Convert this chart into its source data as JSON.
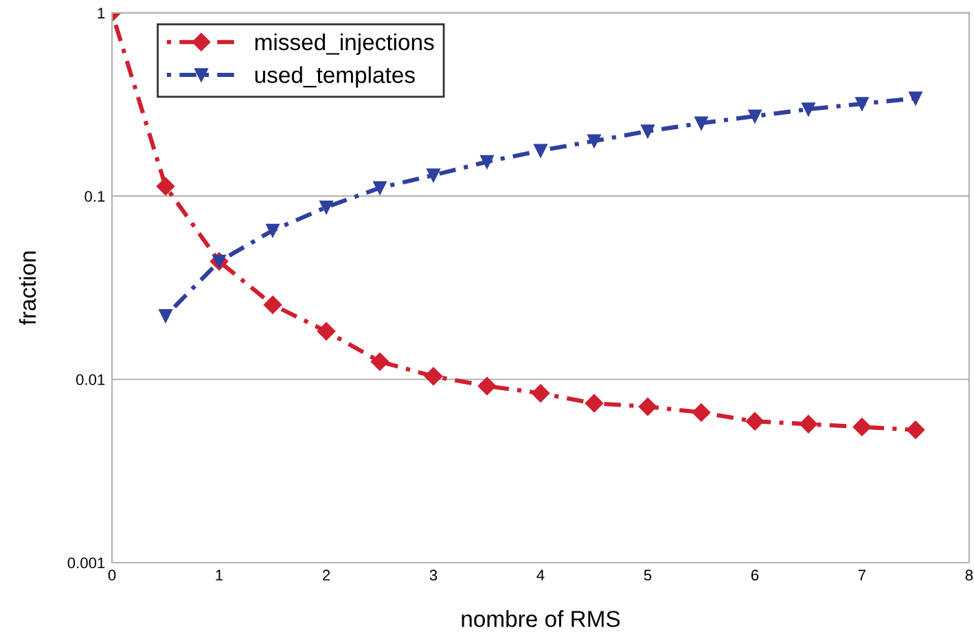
{
  "chart_data": {
    "type": "line",
    "xlabel": "nombre of RMS",
    "ylabel": "fraction",
    "log": "y",
    "xlim": [
      0,
      8
    ],
    "xticks": [
      0,
      1,
      2,
      3,
      4,
      5,
      6,
      7,
      8
    ],
    "ylim": [
      0.001,
      1
    ],
    "yticks": [
      0.001,
      0.01,
      0.1,
      1
    ],
    "grid": "y",
    "legend": "top left",
    "line_style": "dotted",
    "series": [
      {
        "name": "missed_injections",
        "color": "#d0202f",
        "marker": "diamond",
        "x": [
          0,
          0.5,
          1,
          1.5,
          2,
          2.5,
          3,
          3.5,
          4,
          4.5,
          5,
          5.5,
          6,
          6.5,
          7,
          7.5
        ],
        "values": [
          1,
          0.113,
          0.044,
          0.0255,
          0.0183,
          0.0125,
          0.0104,
          0.0092,
          0.0084,
          0.0074,
          0.0071,
          0.0066,
          0.0059,
          0.0057,
          0.0055,
          0.0053
        ]
      },
      {
        "name": "used_templates",
        "color": "#3040a0",
        "marker": "triangle",
        "x": [
          0.5,
          1,
          1.5,
          2,
          2.5,
          3,
          3.5,
          4,
          4.5,
          5,
          5.5,
          6,
          6.5,
          7,
          7.5
        ],
        "values": [
          0.0222,
          0.044,
          0.065,
          0.087,
          0.111,
          0.13,
          0.154,
          0.177,
          0.2,
          0.226,
          0.25,
          0.273,
          0.298,
          0.319,
          0.342
        ]
      }
    ]
  }
}
